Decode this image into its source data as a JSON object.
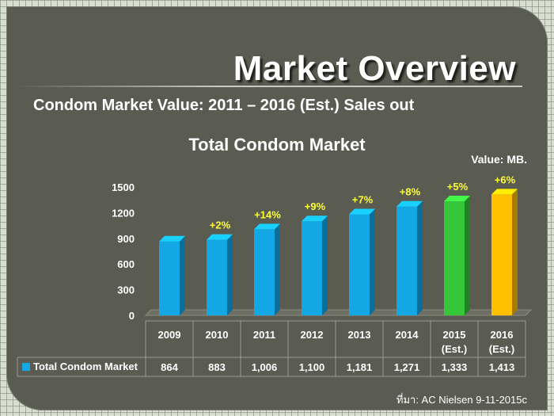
{
  "header": {
    "title": "Market Overview",
    "subtitle": "Condom Market Value: 2011 – 2016 (Est.) Sales out"
  },
  "source": "ที่มา: AC Nielsen 9-11-2015c",
  "chart_data": {
    "type": "bar",
    "title": "Total Condom Market",
    "unit_label": "Value: MB.",
    "categories": [
      {
        "year": "2009",
        "note": ""
      },
      {
        "year": "2010",
        "note": ""
      },
      {
        "year": "2011",
        "note": ""
      },
      {
        "year": "2012",
        "note": ""
      },
      {
        "year": "2013",
        "note": ""
      },
      {
        "year": "2014",
        "note": ""
      },
      {
        "year": "2015",
        "note": "(Est.)"
      },
      {
        "year": "2016",
        "note": "(Est.)"
      }
    ],
    "series": [
      {
        "name": "Total Condom Market",
        "values": [
          864,
          883,
          1006,
          1100,
          1181,
          1271,
          1333,
          1413
        ],
        "value_labels": [
          "864",
          "883",
          "1,006",
          "1,100",
          "1,181",
          "1,271",
          "1,333",
          "1,413"
        ]
      }
    ],
    "growth_labels": [
      "",
      "+2%",
      "+14%",
      "+9%",
      "+7%",
      "+8%",
      "+5%",
      "+6%"
    ],
    "bar_colors": [
      "#13a7e6",
      "#13a7e6",
      "#13a7e6",
      "#13a7e6",
      "#13a7e6",
      "#13a7e6",
      "#35c63a",
      "#ffc000"
    ],
    "yticks": [
      0,
      300,
      600,
      900,
      1200,
      1500
    ],
    "ylim": [
      0,
      1500
    ],
    "legend": "data-table"
  }
}
